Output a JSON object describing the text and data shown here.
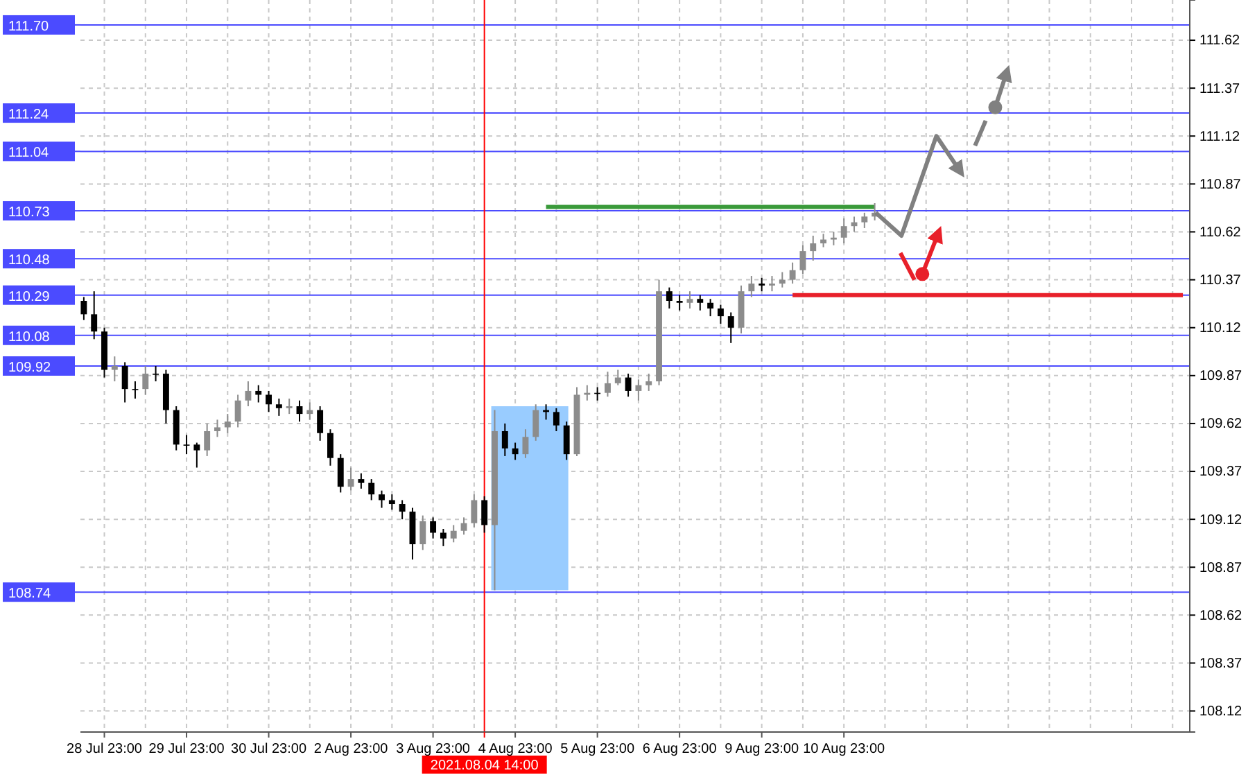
{
  "chart_data": {
    "type": "candlestick",
    "categories": [
      null,
      null,
      "28 Jul 23:00",
      null,
      null,
      null,
      null,
      null,
      null,
      null,
      "29 Jul 23:00",
      null,
      null,
      null,
      null,
      null,
      null,
      null,
      "30 Jul 23:00",
      null,
      null,
      null,
      null,
      null,
      null,
      null,
      "2 Aug 23:00",
      null,
      null,
      null,
      null,
      null,
      null,
      null,
      "3 Aug 23:00",
      null,
      null,
      null,
      null,
      "2021.08.04 14:00",
      null,
      null,
      "4 Aug 23:00",
      null,
      null,
      null,
      null,
      null,
      null,
      null,
      "5 Aug 23:00",
      null,
      null,
      null,
      null,
      null,
      null,
      null,
      "6 Aug 23:00",
      null,
      null,
      null,
      null,
      null,
      null,
      null,
      "9 Aug 23:00",
      null,
      null,
      null,
      null,
      null,
      null,
      null,
      "10 Aug 23:00",
      null,
      null,
      null,
      null,
      null,
      null,
      null,
      null,
      null,
      null,
      null,
      null,
      null,
      null,
      null,
      null,
      null,
      null,
      null,
      null,
      null,
      null,
      null,
      null,
      null,
      null,
      null,
      null,
      null,
      null,
      null,
      null,
      null
    ],
    "ohlc": [
      [
        110.26,
        110.28,
        110.16,
        110.19
      ],
      [
        110.19,
        110.31,
        110.06,
        110.1
      ],
      [
        110.1,
        110.12,
        109.86,
        109.9
      ],
      [
        109.9,
        109.97,
        109.84,
        109.92
      ],
      [
        109.92,
        109.94,
        109.73,
        109.8
      ],
      [
        109.8,
        109.84,
        109.75,
        109.8
      ],
      [
        109.8,
        109.92,
        109.77,
        109.88
      ],
      [
        109.88,
        109.92,
        109.84,
        109.88
      ],
      [
        109.88,
        109.9,
        109.62,
        109.69
      ],
      [
        109.69,
        109.71,
        109.48,
        109.51
      ],
      [
        109.51,
        109.56,
        109.46,
        109.51
      ],
      [
        109.51,
        109.52,
        109.39,
        109.48
      ],
      [
        109.48,
        109.62,
        109.45,
        109.58
      ],
      [
        109.58,
        109.64,
        109.55,
        109.6
      ],
      [
        109.6,
        109.67,
        109.57,
        109.63
      ],
      [
        109.63,
        109.77,
        109.6,
        109.74
      ],
      [
        109.74,
        109.84,
        109.71,
        109.79
      ],
      [
        109.79,
        109.82,
        109.73,
        109.77
      ],
      [
        109.77,
        109.79,
        109.68,
        109.72
      ],
      [
        109.72,
        109.75,
        109.66,
        109.7
      ],
      [
        109.7,
        109.75,
        109.67,
        109.71
      ],
      [
        109.71,
        109.74,
        109.63,
        109.67
      ],
      [
        109.67,
        109.73,
        109.64,
        109.69
      ],
      [
        109.69,
        109.71,
        109.53,
        109.57
      ],
      [
        109.57,
        109.59,
        109.4,
        109.44
      ],
      [
        109.44,
        109.46,
        109.26,
        109.29
      ],
      [
        109.29,
        109.39,
        109.27,
        109.33
      ],
      [
        109.33,
        109.36,
        109.28,
        109.31
      ],
      [
        109.31,
        109.33,
        109.22,
        109.25
      ],
      [
        109.25,
        109.27,
        109.18,
        109.22
      ],
      [
        109.22,
        109.25,
        109.17,
        109.2
      ],
      [
        109.2,
        109.22,
        109.12,
        109.16
      ],
      [
        109.16,
        109.18,
        108.91,
        108.99
      ],
      [
        108.99,
        109.14,
        108.96,
        109.11
      ],
      [
        109.11,
        109.13,
        109.02,
        109.05
      ],
      [
        109.05,
        109.07,
        108.98,
        109.02
      ],
      [
        109.02,
        109.09,
        109.0,
        109.06
      ],
      [
        109.06,
        109.13,
        109.04,
        109.1
      ],
      [
        109.1,
        109.25,
        109.08,
        109.22
      ],
      [
        109.22,
        109.24,
        109.05,
        109.09
      ],
      [
        109.09,
        109.69,
        108.75,
        109.58
      ],
      [
        109.58,
        109.62,
        109.45,
        109.49
      ],
      [
        109.49,
        109.52,
        109.43,
        109.46
      ],
      [
        109.46,
        109.59,
        109.44,
        109.55
      ],
      [
        109.55,
        109.72,
        109.53,
        109.69
      ],
      [
        109.69,
        109.72,
        109.64,
        109.68
      ],
      [
        109.68,
        109.7,
        109.58,
        109.61
      ],
      [
        109.61,
        109.63,
        109.43,
        109.46
      ],
      [
        109.46,
        109.81,
        109.45,
        109.77
      ],
      [
        109.77,
        109.82,
        109.74,
        109.78
      ],
      [
        109.78,
        109.81,
        109.74,
        109.78
      ],
      [
        109.78,
        109.89,
        109.76,
        109.83
      ],
      [
        109.83,
        109.9,
        109.82,
        109.86
      ],
      [
        109.86,
        109.88,
        109.76,
        109.79
      ],
      [
        109.79,
        109.85,
        109.74,
        109.82
      ],
      [
        109.82,
        109.88,
        109.79,
        109.84
      ],
      [
        109.84,
        110.37,
        109.82,
        110.31
      ],
      [
        110.31,
        110.33,
        110.22,
        110.26
      ],
      [
        110.26,
        110.29,
        110.21,
        110.25
      ],
      [
        110.25,
        110.31,
        110.22,
        110.27
      ],
      [
        110.27,
        110.29,
        110.21,
        110.25
      ],
      [
        110.25,
        110.27,
        110.18,
        110.22
      ],
      [
        110.22,
        110.24,
        110.14,
        110.18
      ],
      [
        110.18,
        110.2,
        110.04,
        110.12
      ],
      [
        110.12,
        110.34,
        110.09,
        110.31
      ],
      [
        110.31,
        110.39,
        110.28,
        110.35
      ],
      [
        110.35,
        110.38,
        110.31,
        110.34
      ],
      [
        110.34,
        110.39,
        110.31,
        110.35
      ],
      [
        110.35,
        110.41,
        110.33,
        110.37
      ],
      [
        110.37,
        110.46,
        110.35,
        110.42
      ],
      [
        110.42,
        110.55,
        110.4,
        110.52
      ],
      [
        110.52,
        110.6,
        110.47,
        110.56
      ],
      [
        110.56,
        110.61,
        110.54,
        110.58
      ],
      [
        110.58,
        110.62,
        110.55,
        110.59
      ],
      [
        110.59,
        110.69,
        110.56,
        110.65
      ],
      [
        110.65,
        110.7,
        110.62,
        110.67
      ],
      [
        110.67,
        110.72,
        110.64,
        110.7
      ],
      [
        110.7,
        110.77,
        110.68,
        110.72
      ],
      null,
      null,
      null,
      null,
      null,
      null,
      null,
      null,
      null,
      null,
      null,
      null,
      null,
      null,
      null,
      null,
      null,
      null,
      null,
      null,
      null,
      null,
      null,
      null,
      null,
      null,
      null,
      null,
      null,
      null
    ],
    "colors": [
      "#000000",
      "#000000",
      "#000000",
      "#8c8c8c",
      "#000000",
      "#000000",
      "#8c8c8c",
      "#000000",
      "#000000",
      "#000000",
      "#000000",
      "#000000",
      "#8c8c8c",
      "#8c8c8c",
      "#8c8c8c",
      "#8c8c8c",
      "#8c8c8c",
      "#000000",
      "#000000",
      "#000000",
      "#8c8c8c",
      "#000000",
      "#8c8c8c",
      "#000000",
      "#000000",
      "#000000",
      "#8c8c8c",
      "#000000",
      "#000000",
      "#000000",
      "#000000",
      "#000000",
      "#000000",
      "#8c8c8c",
      "#000000",
      "#000000",
      "#8c8c8c",
      "#8c8c8c",
      "#8c8c8c",
      "#000000",
      "#8c8c8c",
      "#000000",
      "#000000",
      "#8c8c8c",
      "#8c8c8c",
      "#000000",
      "#000000",
      "#000000",
      "#8c8c8c",
      "#8c8c8c",
      "#000000",
      "#8c8c8c",
      "#8c8c8c",
      "#000000",
      "#8c8c8c",
      "#8c8c8c",
      "#8c8c8c",
      "#000000",
      "#000000",
      "#8c8c8c",
      "#000000",
      "#000000",
      "#000000",
      "#000000",
      "#8c8c8c",
      "#8c8c8c",
      "#000000",
      "#8c8c8c",
      "#8c8c8c",
      "#8c8c8c",
      "#8c8c8c",
      "#8c8c8c",
      "#8c8c8c",
      "#8c8c8c",
      "#8c8c8c",
      "#8c8c8c",
      "#8c8c8c",
      "#8c8c8c",
      null,
      null,
      null,
      null,
      null,
      null,
      null,
      null,
      null,
      null,
      null,
      null,
      null,
      null,
      null,
      null,
      null,
      null,
      null,
      null,
      null,
      null,
      null,
      null,
      null,
      null,
      null,
      null,
      null,
      null
    ],
    "series": [
      {
        "type": "line",
        "color": "#3a9a3a",
        "values": [
          null,
          null,
          null,
          null,
          null,
          null,
          null,
          null,
          null,
          null,
          null,
          null,
          null,
          null,
          null,
          null,
          null,
          null,
          null,
          null,
          null,
          null,
          null,
          null,
          null,
          null,
          null,
          null,
          null,
          null,
          null,
          null,
          null,
          null,
          null,
          null,
          null,
          null,
          null,
          null,
          null,
          null,
          null,
          null,
          null,
          110.75,
          110.75,
          110.75,
          110.75,
          110.75,
          110.75,
          110.75,
          110.75,
          110.75,
          110.75,
          110.75,
          110.75,
          110.75,
          110.75,
          110.75,
          110.75,
          110.75,
          110.75,
          110.75,
          110.75,
          110.75,
          110.75,
          110.75,
          110.75,
          110.75,
          110.75,
          110.75,
          110.75,
          110.75,
          110.75,
          110.75,
          110.75,
          110.75,
          null,
          null,
          null,
          null,
          null,
          null,
          null,
          null,
          null,
          null,
          null,
          null,
          null,
          null,
          null,
          null,
          null,
          null,
          null,
          null,
          null,
          null,
          null,
          null,
          null,
          null,
          null,
          null,
          null,
          null
        ]
      },
      {
        "type": "line",
        "color": "#e8202a",
        "values": [
          null,
          null,
          null,
          null,
          null,
          null,
          null,
          null,
          null,
          null,
          null,
          null,
          null,
          null,
          null,
          null,
          null,
          null,
          null,
          null,
          null,
          null,
          null,
          null,
          null,
          null,
          null,
          null,
          null,
          null,
          null,
          null,
          null,
          null,
          null,
          null,
          null,
          null,
          null,
          null,
          null,
          null,
          null,
          null,
          null,
          null,
          null,
          null,
          null,
          null,
          null,
          null,
          null,
          null,
          null,
          null,
          null,
          null,
          null,
          null,
          null,
          null,
          null,
          null,
          null,
          null,
          null,
          null,
          null,
          110.29,
          110.29,
          110.29,
          110.29,
          110.29,
          110.29,
          110.29,
          110.29,
          110.29,
          110.29,
          110.29,
          110.29,
          110.29,
          110.29,
          110.29,
          110.29,
          110.29,
          110.29,
          110.29,
          110.29,
          110.29,
          110.29,
          110.29,
          110.29,
          110.29,
          110.29,
          110.29,
          110.29,
          110.29,
          110.29,
          110.29,
          110.29,
          110.29,
          110.29,
          110.29,
          110.29,
          110.29,
          110.29,
          110.29
        ]
      }
    ],
    "ylim": [
      108.01,
      111.83
    ],
    "yticks": [
      108.12,
      108.37,
      108.62,
      108.87,
      109.12,
      109.37,
      109.62,
      109.87,
      110.12,
      110.37,
      110.62,
      110.87,
      111.12,
      111.37,
      111.62
    ],
    "grid": true,
    "ref_lines": [
      {
        "axis": "y",
        "value": 111.7,
        "label": "111.70",
        "color": "#4b4bff"
      },
      {
        "axis": "y",
        "value": 111.24,
        "label": "111.24",
        "color": "#4b4bff"
      },
      {
        "axis": "y",
        "value": 111.04,
        "label": "111.04",
        "color": "#4b4bff"
      },
      {
        "axis": "y",
        "value": 110.73,
        "label": "110.73",
        "color": "#4b4bff"
      },
      {
        "axis": "y",
        "value": 110.48,
        "label": "110.48",
        "color": "#4b4bff"
      },
      {
        "axis": "y",
        "value": 110.29,
        "label": "110.29",
        "color": "#4b4bff"
      },
      {
        "axis": "y",
        "value": 110.08,
        "label": "110.08",
        "color": "#4b4bff"
      },
      {
        "axis": "y",
        "value": 109.92,
        "label": "109.92",
        "color": "#4b4bff"
      },
      {
        "axis": "y",
        "value": 108.74,
        "label": "108.74",
        "color": "#4b4bff"
      },
      {
        "axis": "x",
        "value": "2021.08.04 14:00",
        "color": "#ff0000"
      }
    ]
  }
}
